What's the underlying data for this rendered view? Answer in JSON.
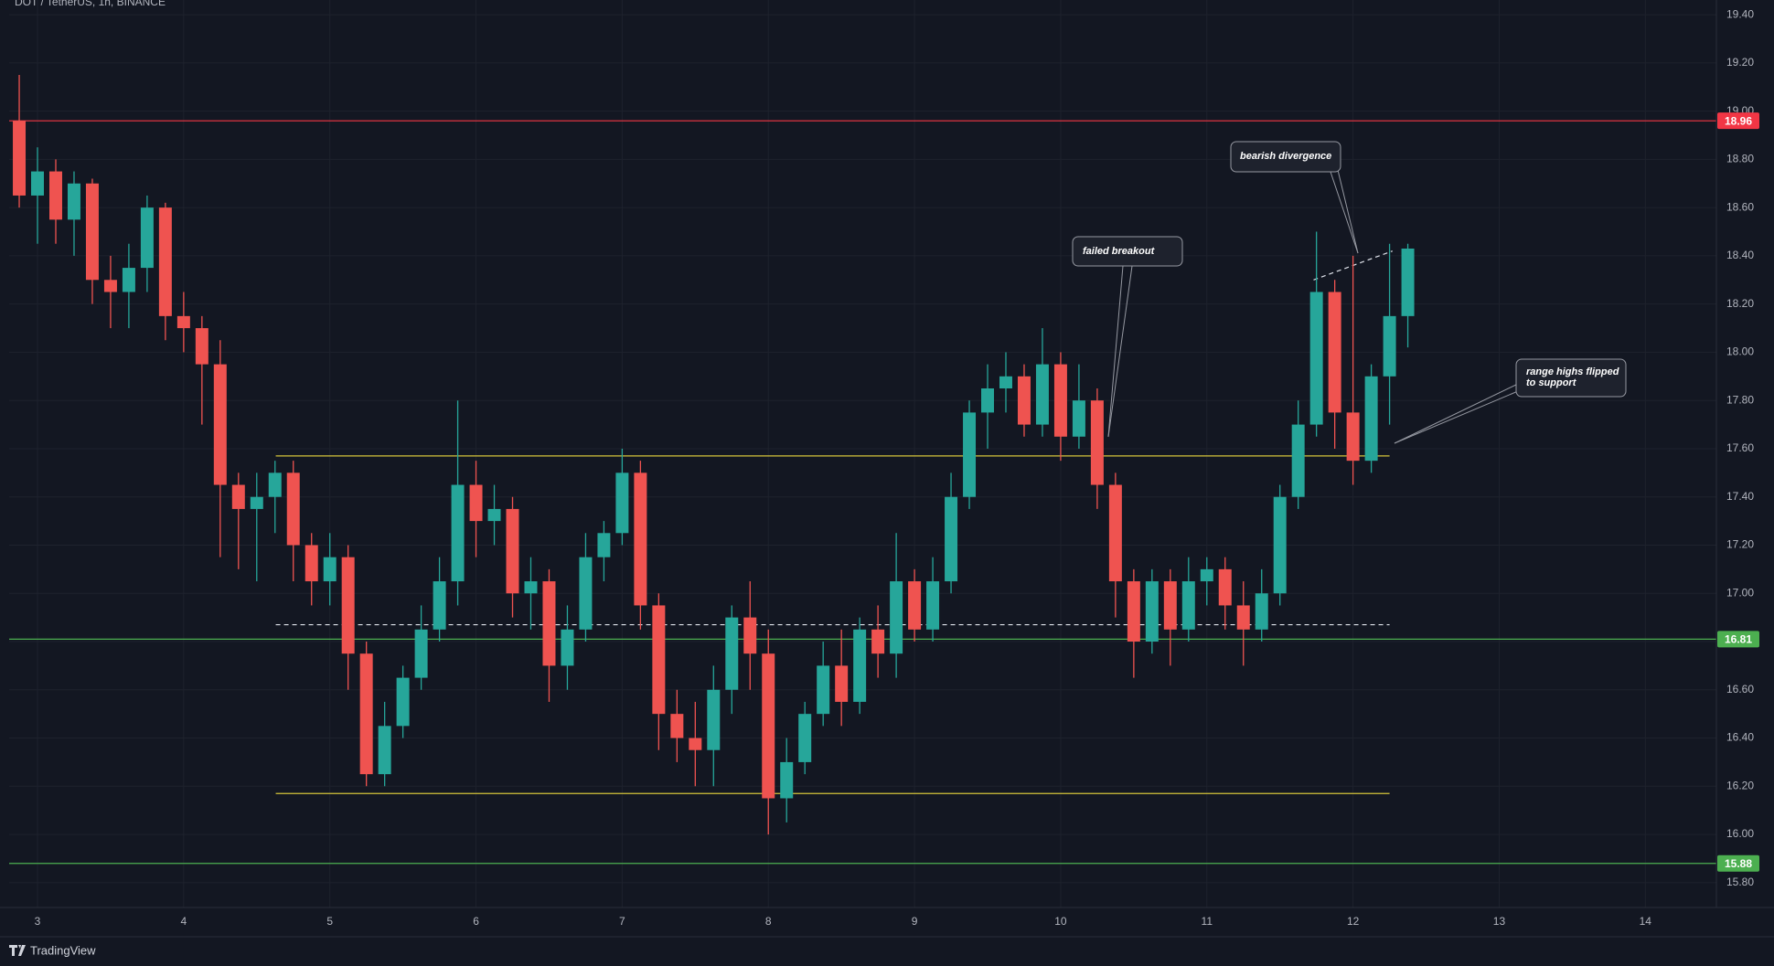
{
  "chart_data": {
    "type": "candlestick",
    "title": "DOT / TetherUS, 1h, BINANCE",
    "x": [
      2.875,
      3.0,
      3.125,
      3.25,
      3.375,
      3.5,
      3.625,
      3.75,
      3.875,
      4.0,
      4.125,
      4.25,
      4.375,
      4.5,
      4.625,
      4.75,
      4.875,
      5.0,
      5.125,
      5.25,
      5.375,
      5.5,
      5.625,
      5.75,
      5.875,
      6.0,
      6.125,
      6.25,
      6.375,
      6.5,
      6.625,
      6.75,
      6.875,
      7.0,
      7.125,
      7.25,
      7.375,
      7.5,
      7.625,
      7.75,
      7.875,
      8.0,
      8.125,
      8.25,
      8.375,
      8.5,
      8.625,
      8.75,
      8.875,
      9.0,
      9.125,
      9.25,
      9.375,
      9.5,
      9.625,
      9.75,
      9.875,
      10.0,
      10.125,
      10.25,
      10.375,
      10.5,
      10.625,
      10.75,
      10.875,
      11.0,
      11.125,
      11.25,
      11.375,
      11.5,
      11.625,
      11.75,
      11.875,
      12.0,
      12.125,
      12.25,
      12.375
    ],
    "open": [
      18.96,
      18.65,
      18.75,
      18.55,
      18.7,
      18.3,
      18.25,
      18.35,
      18.6,
      18.15,
      18.1,
      17.95,
      17.45,
      17.35,
      17.4,
      17.5,
      17.2,
      17.05,
      17.15,
      16.75,
      16.25,
      16.45,
      16.65,
      16.85,
      17.05,
      17.45,
      17.3,
      17.35,
      17.0,
      17.05,
      16.7,
      16.85,
      17.15,
      17.25,
      17.5,
      16.95,
      16.5,
      16.4,
      16.35,
      16.6,
      16.9,
      16.75,
      16.15,
      16.3,
      16.5,
      16.7,
      16.55,
      16.85,
      16.75,
      17.05,
      16.85,
      17.05,
      17.4,
      17.75,
      17.85,
      17.9,
      17.7,
      17.95,
      17.65,
      17.8,
      17.45,
      17.05,
      16.8,
      17.05,
      16.85,
      17.05,
      17.1,
      16.95,
      16.85,
      17.0,
      17.4,
      17.7,
      18.25,
      17.75,
      17.55,
      17.9,
      18.15
    ],
    "high": [
      19.15,
      18.85,
      18.8,
      18.75,
      18.72,
      18.4,
      18.45,
      18.65,
      18.62,
      18.25,
      18.15,
      18.05,
      17.5,
      17.5,
      17.55,
      17.55,
      17.25,
      17.25,
      17.2,
      16.8,
      16.55,
      16.7,
      16.95,
      17.15,
      17.8,
      17.55,
      17.45,
      17.4,
      17.15,
      17.1,
      16.95,
      17.25,
      17.3,
      17.6,
      17.55,
      17.0,
      16.6,
      16.55,
      16.7,
      16.95,
      17.05,
      16.85,
      16.4,
      16.55,
      16.8,
      16.85,
      16.9,
      16.95,
      17.25,
      17.1,
      17.15,
      17.5,
      17.8,
      17.95,
      18.0,
      17.95,
      18.1,
      18.0,
      17.95,
      17.85,
      17.5,
      17.1,
      17.1,
      17.1,
      17.15,
      17.15,
      17.15,
      17.05,
      17.1,
      17.45,
      17.8,
      18.5,
      18.3,
      18.4,
      17.95,
      18.45,
      18.45
    ],
    "low": [
      18.6,
      18.45,
      18.45,
      18.4,
      18.2,
      18.1,
      18.1,
      18.25,
      18.05,
      18.0,
      17.7,
      17.15,
      17.1,
      17.05,
      17.25,
      17.05,
      16.95,
      16.95,
      16.6,
      16.2,
      16.2,
      16.4,
      16.6,
      16.8,
      16.95,
      17.15,
      17.2,
      16.9,
      16.85,
      16.55,
      16.6,
      16.8,
      17.05,
      17.2,
      16.85,
      16.35,
      16.3,
      16.2,
      16.2,
      16.5,
      16.6,
      16.0,
      16.05,
      16.25,
      16.45,
      16.45,
      16.5,
      16.65,
      16.65,
      16.8,
      16.8,
      17.0,
      17.35,
      17.6,
      17.75,
      17.65,
      17.65,
      17.55,
      17.6,
      17.35,
      16.9,
      16.65,
      16.75,
      16.7,
      16.8,
      16.95,
      16.85,
      16.7,
      16.8,
      16.95,
      17.35,
      17.65,
      17.6,
      17.45,
      17.5,
      17.7,
      18.02
    ],
    "close": [
      18.65,
      18.75,
      18.55,
      18.7,
      18.3,
      18.25,
      18.35,
      18.6,
      18.15,
      18.1,
      17.95,
      17.45,
      17.35,
      17.4,
      17.5,
      17.2,
      17.05,
      17.15,
      16.75,
      16.25,
      16.45,
      16.65,
      16.85,
      17.05,
      17.45,
      17.3,
      17.35,
      17.0,
      17.05,
      16.7,
      16.85,
      17.15,
      17.25,
      17.5,
      16.95,
      16.5,
      16.4,
      16.35,
      16.6,
      16.9,
      16.75,
      16.15,
      16.3,
      16.5,
      16.7,
      16.55,
      16.85,
      16.75,
      17.05,
      16.85,
      17.05,
      17.4,
      17.75,
      17.85,
      17.9,
      17.7,
      17.95,
      17.65,
      17.8,
      17.45,
      17.05,
      16.8,
      17.05,
      16.85,
      17.05,
      17.1,
      16.95,
      16.85,
      17.0,
      17.4,
      17.7,
      18.25,
      17.75,
      17.55,
      17.9,
      18.15,
      18.43
    ],
    "up_color": "#26a69a",
    "down_color": "#ef5350",
    "xlim": [
      2.806,
      14.486
    ],
    "xticks": [
      3,
      4,
      5,
      6,
      7,
      8,
      9,
      10,
      11,
      12,
      13,
      14
    ],
    "ylim": [
      15.697,
      19.461
    ],
    "yticks": [
      {
        "value": 15.8,
        "label": "15.80"
      },
      {
        "value": 16.0,
        "label": "16.00"
      },
      {
        "value": 16.2,
        "label": "16.20"
      },
      {
        "value": 16.4,
        "label": "16.40"
      },
      {
        "value": 16.6,
        "label": "16.60"
      },
      {
        "value": 16.8,
        "label": "16.80"
      },
      {
        "value": 17.0,
        "label": "17.00"
      },
      {
        "value": 17.2,
        "label": "17.20"
      },
      {
        "value": 17.4,
        "label": "17.40"
      },
      {
        "value": 17.6,
        "label": "17.60"
      },
      {
        "value": 17.8,
        "label": "17.80"
      },
      {
        "value": 18.0,
        "label": "18.00"
      },
      {
        "value": 18.2,
        "label": "18.20"
      },
      {
        "value": 18.4,
        "label": "18.40"
      },
      {
        "value": 18.6,
        "label": "18.60"
      },
      {
        "value": 18.8,
        "label": "18.80"
      },
      {
        "value": 19.0,
        "label": "19.00"
      },
      {
        "value": 19.2,
        "label": "19.20"
      },
      {
        "value": 19.4,
        "label": "19.40"
      }
    ],
    "grid": true,
    "levels": [
      {
        "value": 18.96,
        "color": "#f23645"
      },
      {
        "value": 16.81,
        "color": "#4caf50"
      },
      {
        "value": 15.88,
        "color": "#4caf50"
      }
    ],
    "range": {
      "x": [
        4.63,
        12.25
      ],
      "lines": [
        {
          "value": 17.57,
          "color": "#d4c43a",
          "dashed": false
        },
        {
          "value": 16.17,
          "color": "#d4c43a",
          "dashed": false
        },
        {
          "value": 16.87,
          "color": "#e0e3eb",
          "dashed": true
        }
      ]
    },
    "trendline": {
      "x": [
        11.73,
        12.27
      ],
      "y": [
        18.3,
        18.42
      ]
    },
    "annotations": [
      {
        "lines": [
          "failed breakout"
        ]
      },
      {
        "lines": [
          "bearish divergence"
        ]
      },
      {
        "lines": [
          "range highs flipped",
          "to support"
        ]
      }
    ],
    "brand": "TradingView"
  }
}
